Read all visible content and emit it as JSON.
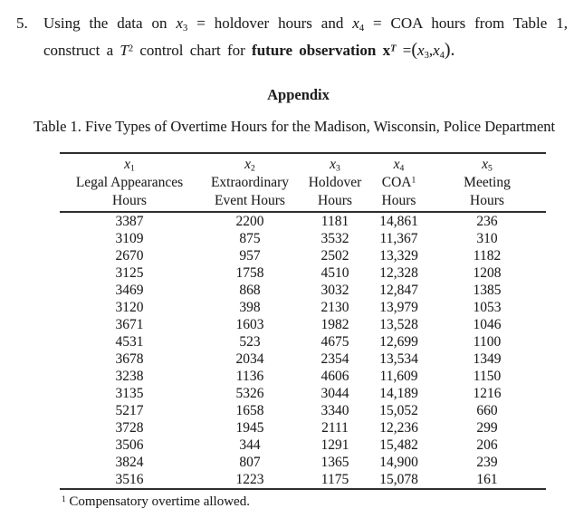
{
  "problem": {
    "number": "5.",
    "line1": {
      "t1": "Using the data on",
      "x3": "x",
      "x3sub": "3",
      "t2": "= holdover hours and",
      "x4": "x",
      "x4sub": "4",
      "t3": "= COA hours from Table 1,"
    },
    "line2": {
      "t1": "construct a",
      "T": "T",
      "Tsup": "2",
      "t2": "control chart for",
      "bold": "future observation",
      "bx": "x",
      "bxsup": "T",
      "eq": "=",
      "open": "(",
      "px3": "x",
      "px3sub": "3",
      "comma": ",",
      "px4": "x",
      "px4sub": "4",
      "close": ")."
    }
  },
  "appendix_heading": "Appendix",
  "table": {
    "title": "Table 1. Five Types of Overtime Hours for the Madison, Wisconsin, Police Department",
    "columns": [
      {
        "var": "x",
        "sub": "1",
        "name": "Legal Appearances",
        "unit": "Hours"
      },
      {
        "var": "x",
        "sub": "2",
        "name": "Extraordinary",
        "unit": "Event Hours"
      },
      {
        "var": "x",
        "sub": "3",
        "name": "Holdover",
        "unit": "Hours"
      },
      {
        "var": "x",
        "sub": "4",
        "name": "COA",
        "sup": "1",
        "unit": "Hours"
      },
      {
        "var": "x",
        "sub": "5",
        "name": "Meeting",
        "unit": "Hours"
      }
    ],
    "rows": [
      [
        "3387",
        "2200",
        "1181",
        "14,861",
        "236"
      ],
      [
        "3109",
        "875",
        "3532",
        "11,367",
        "310"
      ],
      [
        "2670",
        "957",
        "2502",
        "13,329",
        "1182"
      ],
      [
        "3125",
        "1758",
        "4510",
        "12,328",
        "1208"
      ],
      [
        "3469",
        "868",
        "3032",
        "12,847",
        "1385"
      ],
      [
        "3120",
        "398",
        "2130",
        "13,979",
        "1053"
      ],
      [
        "3671",
        "1603",
        "1982",
        "13,528",
        "1046"
      ],
      [
        "4531",
        "523",
        "4675",
        "12,699",
        "1100"
      ],
      [
        "3678",
        "2034",
        "2354",
        "13,534",
        "1349"
      ],
      [
        "3238",
        "1136",
        "4606",
        "11,609",
        "1150"
      ],
      [
        "3135",
        "5326",
        "3044",
        "14,189",
        "1216"
      ],
      [
        "5217",
        "1658",
        "3340",
        "15,052",
        "660"
      ],
      [
        "3728",
        "1945",
        "2111",
        "12,236",
        "299"
      ],
      [
        "3506",
        "344",
        "1291",
        "15,482",
        "206"
      ],
      [
        "3824",
        "807",
        "1365",
        "14,900",
        "239"
      ],
      [
        "3516",
        "1223",
        "1175",
        "15,078",
        "161"
      ]
    ],
    "footnote_sup": "1",
    "footnote_text": "Compensatory overtime allowed."
  }
}
